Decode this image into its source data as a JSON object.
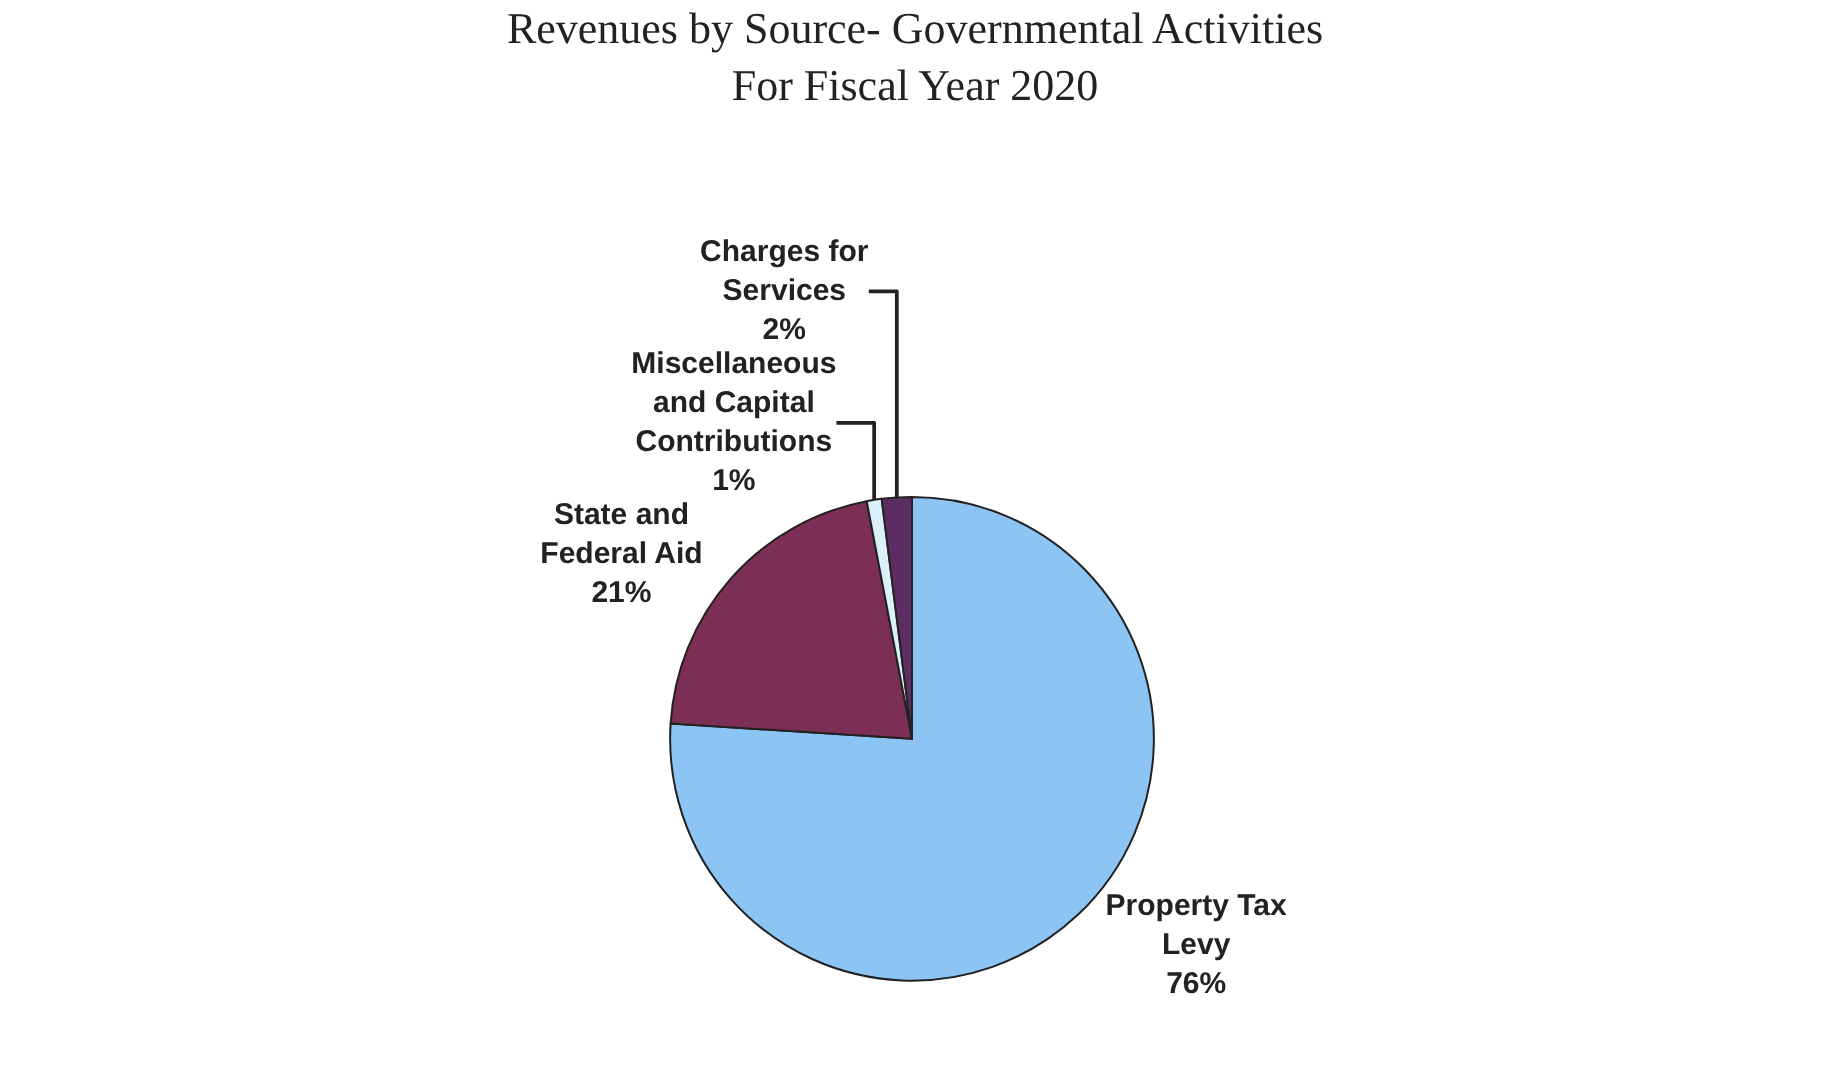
{
  "chart_data": {
    "type": "pie",
    "title": "Revenues by Source- Governmental Activities\nFor Fiscal Year 2020",
    "categories": [
      "Property Tax Levy",
      "State and Federal Aid",
      "Miscellaneous and Capital Contributions",
      "Charges for Services"
    ],
    "values": [
      76,
      21,
      1,
      2
    ],
    "colors": [
      "#8cc4f4",
      "#7d2e55",
      "#dcf0fa",
      "#5c2d63"
    ],
    "value_labels": [
      "76%",
      "21%",
      "1%",
      "2%"
    ],
    "legend": false
  }
}
